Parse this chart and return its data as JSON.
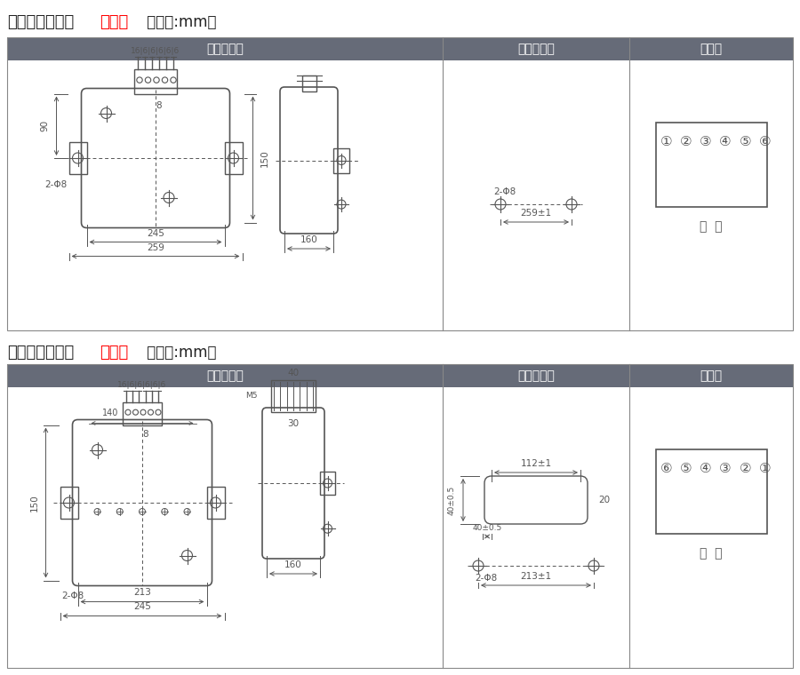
{
  "title1_black": "单相过流凸出式",
  "title1_red": "前接线",
  "title1_suffix": " （单位:mm）",
  "title2_black": "单相过流凸出式",
  "title2_red": "后接线",
  "title2_suffix": " （单位:mm）",
  "header_bg": "#666b78",
  "header_text": "#ffffff",
  "header1": "外形尺寸图",
  "header2": "安装开孔图",
  "header3": "端子图",
  "line_color": "#555555",
  "dim_color": "#555555",
  "red_color": "#ff0000",
  "fig_bg": "#ffffff",
  "border_color": "#888888"
}
